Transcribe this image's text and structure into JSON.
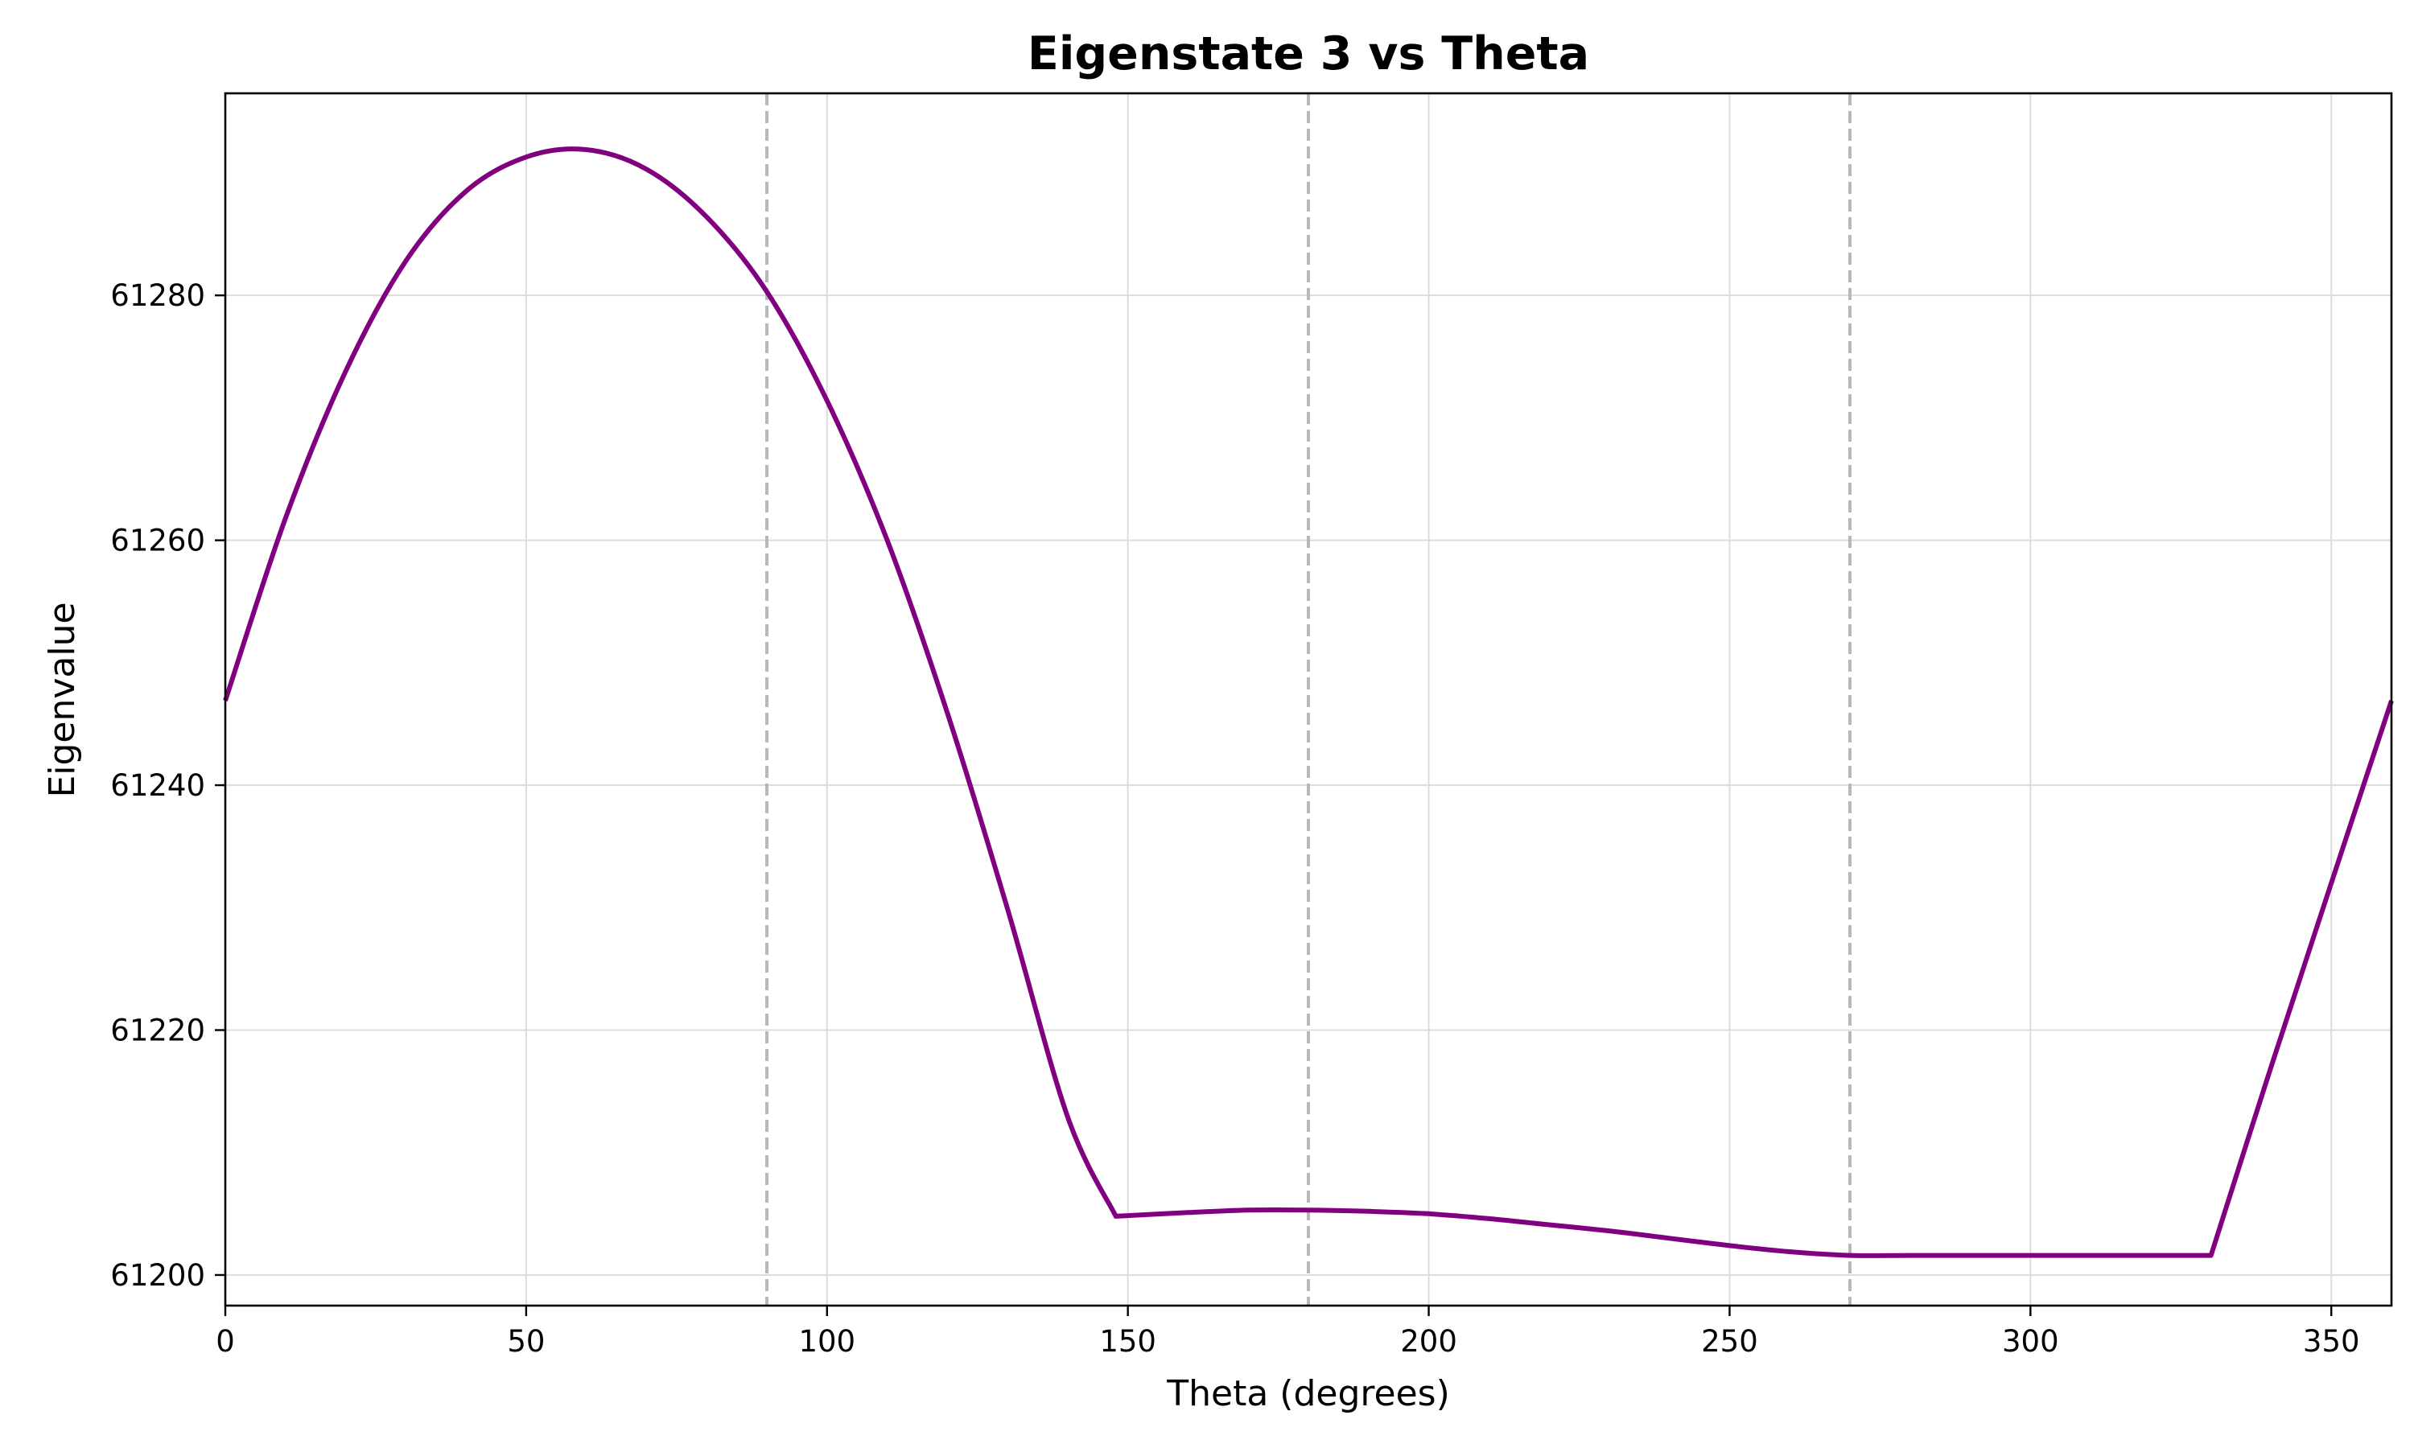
{
  "chart_data": {
    "type": "line",
    "title": "Eigenstate 3 vs Theta",
    "xlabel": "Theta (degrees)",
    "ylabel": "Eigenvalue",
    "xlim": [
      0,
      360
    ],
    "ylim": [
      61197.5,
      61296.5
    ],
    "xticks": [
      0,
      50,
      100,
      150,
      200,
      250,
      300,
      350
    ],
    "yticks": [
      61200,
      61220,
      61240,
      61260,
      61280
    ],
    "grid": true,
    "reference_lines_x": [
      90,
      180,
      270
    ],
    "series": [
      {
        "color": "#800080",
        "x": [
          0,
          10,
          20,
          30,
          40,
          50,
          60,
          70,
          80,
          90,
          100,
          110,
          120,
          130,
          140,
          148,
          160,
          170,
          180,
          190,
          200,
          210,
          220,
          230,
          240,
          250,
          260,
          270,
          280,
          290,
          300,
          310,
          320,
          330,
          340,
          350,
          360
        ],
        "y": [
          61246.9,
          61261.8,
          61273.8,
          61282.8,
          61288.5,
          61291.3,
          61291.9,
          61290.3,
          61286.4,
          61280.3,
          61271.4,
          61260.0,
          61245.9,
          61229.9,
          61212.9,
          61204.8,
          61205.1,
          61205.3,
          61205.3,
          61205.2,
          61205.0,
          61204.6,
          61204.1,
          61203.6,
          61203.0,
          61202.4,
          61201.9,
          61201.6,
          61201.6,
          61201.6,
          61201.6,
          61201.6,
          61201.6,
          61201.6,
          61217.0,
          61232.0,
          61246.9
        ]
      }
    ]
  }
}
